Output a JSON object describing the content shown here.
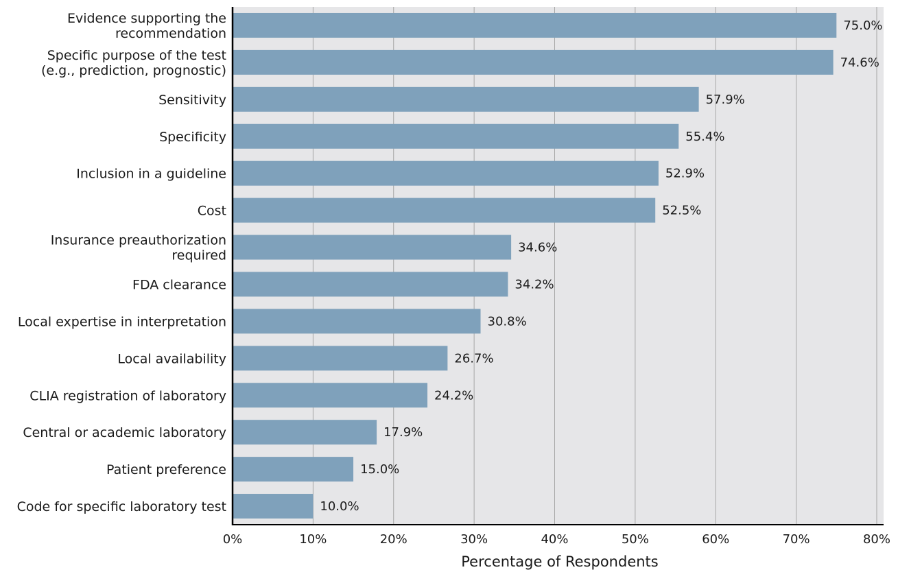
{
  "chart_data": {
    "type": "bar",
    "orientation": "horizontal",
    "categories": [
      [
        "Evidence supporting the",
        "recommendation"
      ],
      [
        "Specific purpose of the test",
        "(e.g., prediction, prognostic)"
      ],
      [
        "Sensitivity"
      ],
      [
        "Specificity"
      ],
      [
        "Inclusion in a guideline"
      ],
      [
        "Cost"
      ],
      [
        "Insurance preauthorization",
        "required"
      ],
      [
        "FDA clearance"
      ],
      [
        "Local expertise in interpretation"
      ],
      [
        "Local availability"
      ],
      [
        "CLIA registration of laboratory"
      ],
      [
        "Central or academic laboratory"
      ],
      [
        "Patient preference"
      ],
      [
        "Code for specific laboratory test"
      ]
    ],
    "values": [
      75.0,
      74.6,
      57.9,
      55.4,
      52.9,
      52.5,
      34.6,
      34.2,
      30.8,
      26.7,
      24.2,
      17.9,
      15.0,
      10.0
    ],
    "value_labels": [
      "75.0%",
      "74.6%",
      "57.9%",
      "55.4%",
      "52.9%",
      "52.5%",
      "34.6%",
      "34.2%",
      "30.8%",
      "26.7%",
      "24.2%",
      "17.9%",
      "15.0%",
      "10.0%"
    ],
    "xlabel": "Percentage of Respondents",
    "ylabel": "",
    "xlim": [
      0,
      80
    ],
    "xticks": [
      0,
      10,
      20,
      30,
      40,
      50,
      60,
      70,
      80
    ],
    "xtick_labels": [
      "0%",
      "10%",
      "20%",
      "30%",
      "40%",
      "50%",
      "60%",
      "70%",
      "80%"
    ],
    "grid": "vertical",
    "colors": {
      "bar": "#7fa1bb",
      "plot_background": "#e6e6e8",
      "gridline": "#a6a6a6",
      "axis": "#000000"
    }
  }
}
